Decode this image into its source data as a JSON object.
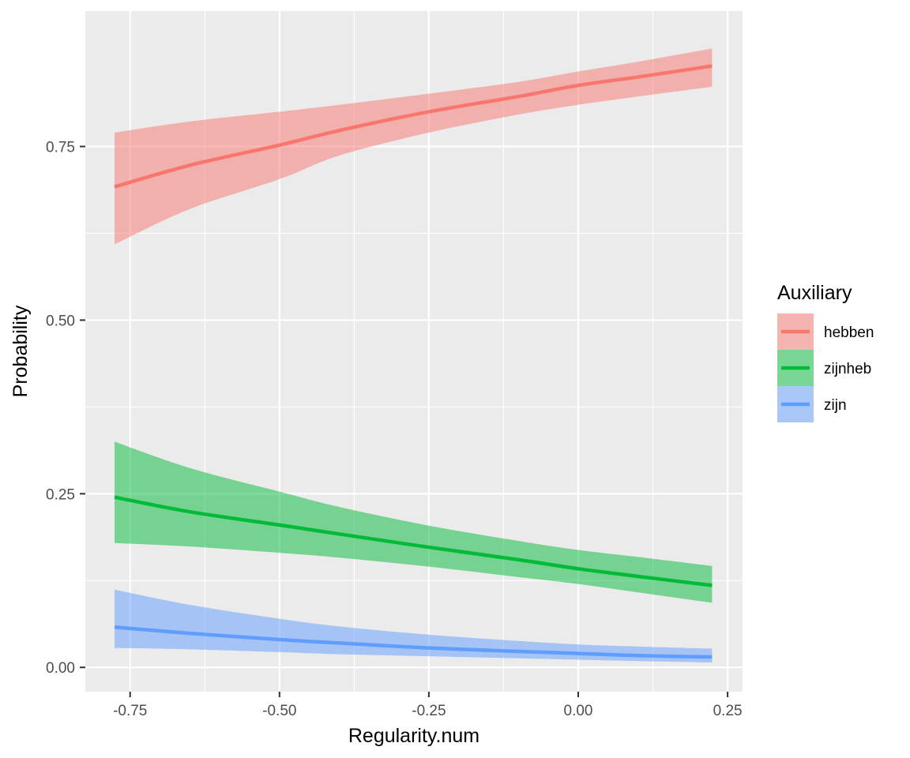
{
  "chart_data": {
    "type": "line",
    "title": "",
    "xlabel": "Regularity.num",
    "ylabel": "Probability",
    "xlim": [
      -0.825,
      0.275
    ],
    "ylim": [
      -0.035,
      0.945
    ],
    "x_ticks": [
      -0.75,
      -0.5,
      -0.25,
      0.0,
      0.25
    ],
    "x_tick_labels": [
      "-0.75",
      "-0.50",
      "-0.25",
      "0.00",
      "0.25"
    ],
    "y_ticks": [
      0.0,
      0.25,
      0.5,
      0.75
    ],
    "y_tick_labels": [
      "0.00",
      "0.25",
      "0.50",
      "0.75"
    ],
    "grid": true,
    "legend": {
      "title": "Auxiliary",
      "position": "right"
    },
    "x": [
      -0.776,
      -0.65,
      -0.5,
      -0.4,
      -0.25,
      -0.1,
      0.0,
      0.1,
      0.224
    ],
    "series": [
      {
        "name": "hebben",
        "color": "#F8766D",
        "values": [
          0.692,
          0.723,
          0.752,
          0.773,
          0.8,
          0.822,
          0.838,
          0.85,
          0.866
        ],
        "lower": [
          0.609,
          0.66,
          0.703,
          0.737,
          0.77,
          0.796,
          0.81,
          0.822,
          0.836
        ],
        "upper": [
          0.77,
          0.786,
          0.8,
          0.81,
          0.826,
          0.843,
          0.858,
          0.872,
          0.891
        ]
      },
      {
        "name": "zijnheb",
        "color": "#00BA38",
        "values": [
          0.245,
          0.224,
          0.205,
          0.192,
          0.173,
          0.155,
          0.142,
          0.131,
          0.118
        ],
        "lower": [
          0.179,
          0.174,
          0.165,
          0.158,
          0.145,
          0.13,
          0.12,
          0.108,
          0.093
        ],
        "upper": [
          0.325,
          0.287,
          0.253,
          0.231,
          0.204,
          0.182,
          0.169,
          0.159,
          0.146
        ]
      },
      {
        "name": "zijn",
        "color": "#619CFF",
        "values": [
          0.058,
          0.049,
          0.04,
          0.035,
          0.028,
          0.023,
          0.02,
          0.017,
          0.015
        ],
        "lower": [
          0.028,
          0.026,
          0.022,
          0.019,
          0.016,
          0.013,
          0.011,
          0.009,
          0.007
        ],
        "upper": [
          0.112,
          0.09,
          0.07,
          0.059,
          0.047,
          0.038,
          0.033,
          0.03,
          0.027
        ]
      }
    ]
  }
}
